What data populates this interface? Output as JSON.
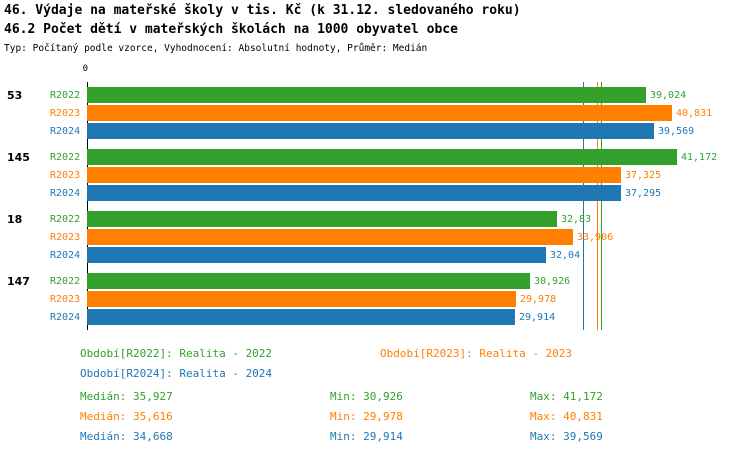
{
  "header": {
    "title1": "46. Výdaje na mateřské školy v tis. Kč (k 31.12. sledovaného roku)",
    "title2": "46.2 Počet dětí v mateřských školách na 1000 obyvatel obce",
    "subtitle": "Typ: Počítaný podle vzorce, Vyhodnocení: Absolutní hodnoty, Průměr: Medián"
  },
  "colors": {
    "green": "#33a02c",
    "orange": "#ff7f00",
    "blue": "#1f78b4"
  },
  "chart_data": {
    "type": "bar",
    "orientation": "horizontal",
    "zero_label": "0",
    "xlim": [
      0,
      46.3
    ],
    "grid": "off",
    "categories": [
      "53",
      "145",
      "18",
      "147"
    ],
    "series": [
      {
        "name": "R2022",
        "color": "#33a02c",
        "values": [
          39.024,
          41.172,
          32.83,
          30.926
        ],
        "labels": [
          "39,024",
          "41,172",
          "32,83",
          "30,926"
        ]
      },
      {
        "name": "R2023",
        "color": "#ff7f00",
        "values": [
          40.831,
          37.325,
          33.906,
          29.978
        ],
        "labels": [
          "40,831",
          "37,325",
          "33,906",
          "29,978"
        ]
      },
      {
        "name": "R2024",
        "color": "#1f78b4",
        "values": [
          39.569,
          37.295,
          32.04,
          29.914
        ],
        "labels": [
          "39,569",
          "37,295",
          "32,04",
          "29,914"
        ]
      }
    ],
    "medians": [
      {
        "series": "R2022",
        "value": 35.927,
        "color": "#33a02c"
      },
      {
        "series": "R2023",
        "value": 35.616,
        "color": "#ff7f00"
      },
      {
        "series": "R2024",
        "value": 34.668,
        "color": "#1f78b4"
      }
    ]
  },
  "legend": {
    "items": [
      {
        "label": "Období[R2022]: Realita - 2022",
        "color": "#33a02c"
      },
      {
        "label": "Období[R2023]: Realita - 2023",
        "color": "#ff7f00"
      },
      {
        "label": "Období[R2024]: Realita - 2024",
        "color": "#1f78b4"
      }
    ]
  },
  "stats": {
    "rows": [
      {
        "median": "Medián: 35,927",
        "min": "Min: 30,926",
        "max": "Max: 41,172",
        "color": "#33a02c"
      },
      {
        "median": "Medián: 35,616",
        "min": "Min: 29,978",
        "max": "Max: 40,831",
        "color": "#ff7f00"
      },
      {
        "median": "Medián: 34,668",
        "min": "Min: 29,914",
        "max": "Max: 39,569",
        "color": "#1f78b4"
      }
    ]
  }
}
